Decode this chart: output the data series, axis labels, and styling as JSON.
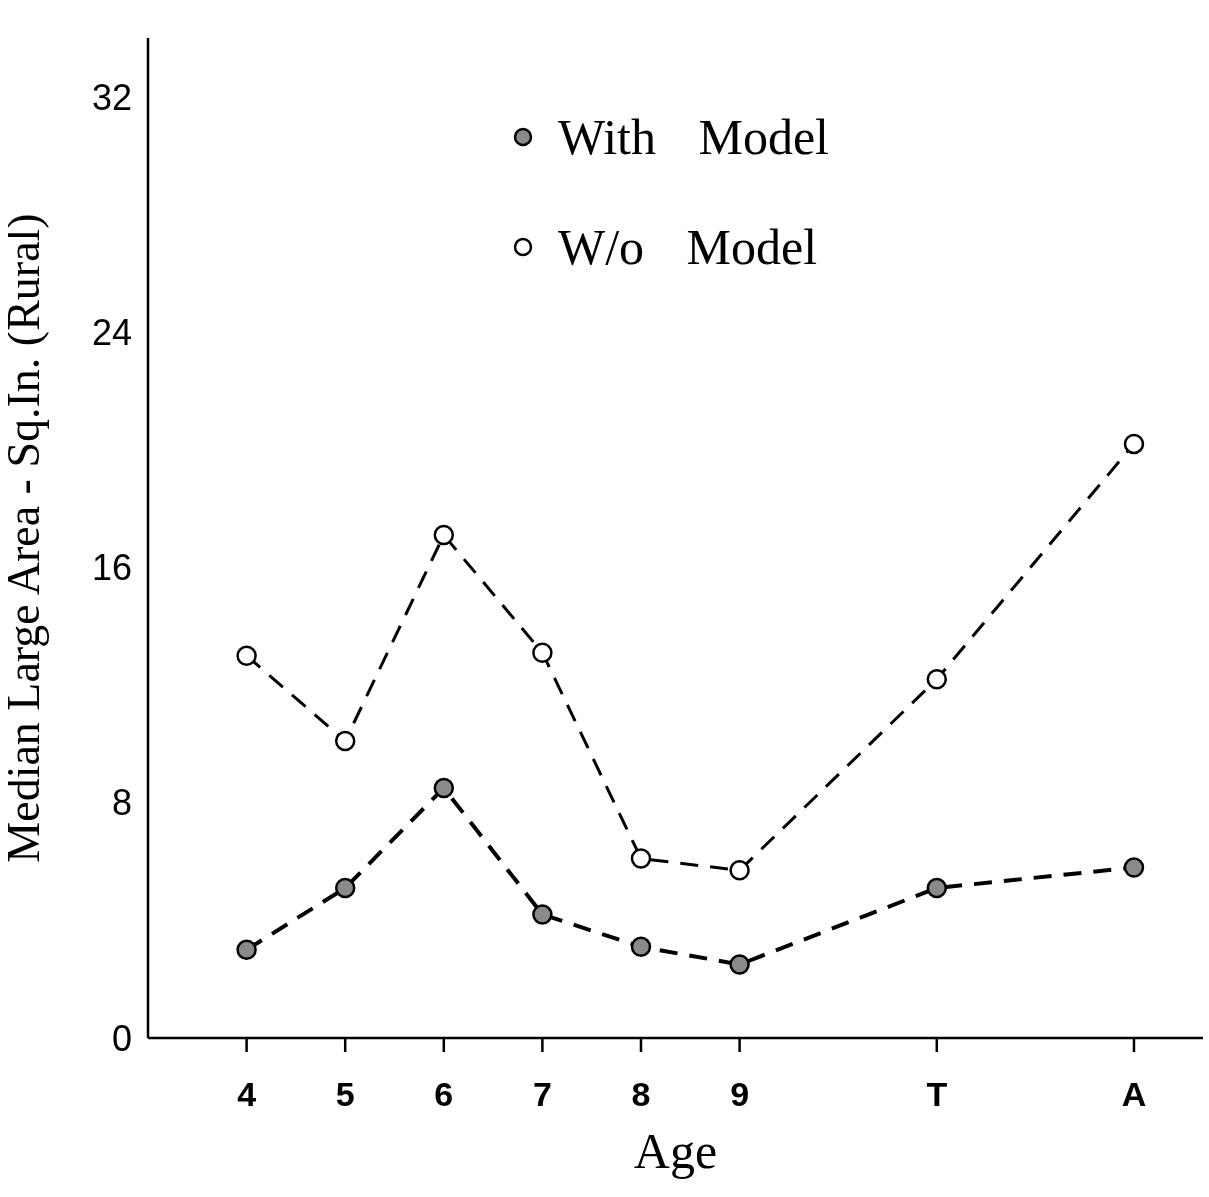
{
  "chart_data": {
    "type": "line",
    "xlabel": "Age",
    "ylabel": "Median Large Area - Sq.In. (Rural)",
    "categories": [
      "4",
      "5",
      "6",
      "7",
      "8",
      "9",
      null,
      "T",
      null,
      "A"
    ],
    "series": [
      {
        "name": "With Model",
        "color": "#000000",
        "values": [
          3.0,
          5.1,
          8.5,
          4.2,
          3.1,
          2.5,
          null,
          5.1,
          null,
          5.8
        ]
      },
      {
        "name": "W/o Model",
        "color": "#000000",
        "values": [
          13.0,
          10.1,
          17.1,
          13.1,
          6.1,
          5.7,
          null,
          12.2,
          null,
          20.2
        ]
      }
    ],
    "ylim": [
      0,
      34
    ],
    "yticks": [
      0,
      8,
      16,
      24,
      32
    ],
    "grid": false,
    "legend": "top",
    "marker": "circle",
    "line_style": "dashed"
  }
}
